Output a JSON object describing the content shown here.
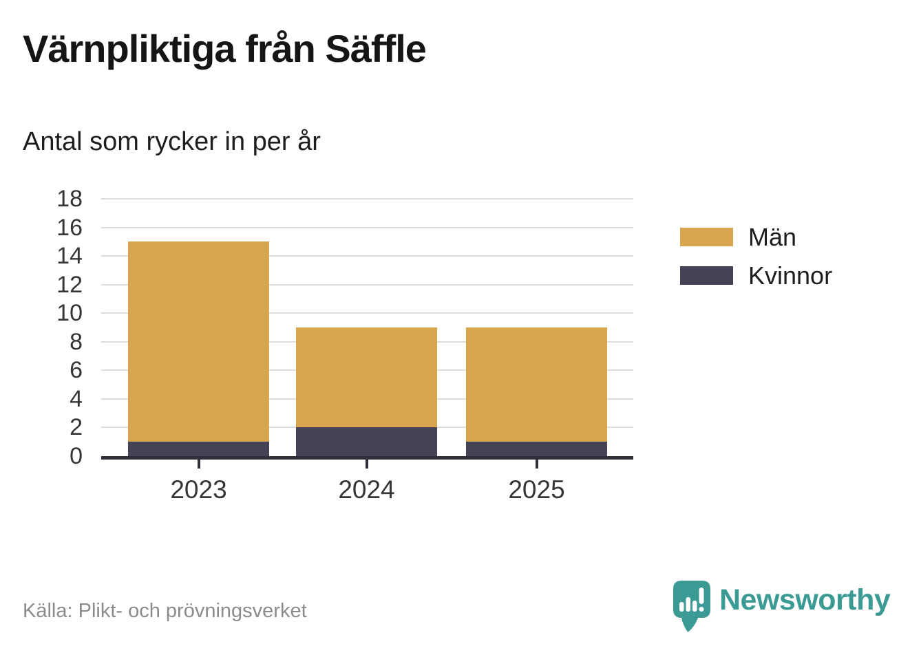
{
  "header": {
    "title": "Värnpliktiga från Säffle",
    "subtitle": "Antal som rycker in per år"
  },
  "chart_data": {
    "type": "bar",
    "stacked": true,
    "title": "Värnpliktiga från Säffle",
    "subtitle": "Antal som rycker in per år",
    "categories": [
      "2023",
      "2024",
      "2025"
    ],
    "series": [
      {
        "name": "Kvinnor",
        "values": [
          1,
          2,
          1
        ],
        "color": "#444255"
      },
      {
        "name": "Män",
        "values": [
          14,
          7,
          8
        ],
        "color": "#d8a64f"
      }
    ],
    "totals": [
      15,
      9,
      9
    ],
    "xlabel": "",
    "ylabel": "",
    "ylim": [
      0,
      18
    ],
    "yticks": [
      0,
      2,
      4,
      6,
      8,
      10,
      12,
      14,
      16,
      18
    ],
    "grid": "horizontal",
    "legend_position": "right"
  },
  "legend": {
    "items": [
      {
        "label": "Män",
        "color": "#d8a64f"
      },
      {
        "label": "Kvinnor",
        "color": "#444255"
      }
    ]
  },
  "footer": {
    "source": "Källa: Plikt- och prövningsverket",
    "brand": "Newsworthy"
  },
  "colors": {
    "bar_men": "#d8a64f",
    "bar_women": "#444255",
    "axis": "#31303a",
    "gridline": "#dddddd",
    "tick_text": "#363636",
    "source_text": "#8b8b8b",
    "brand_teal": "#3b9b94"
  }
}
